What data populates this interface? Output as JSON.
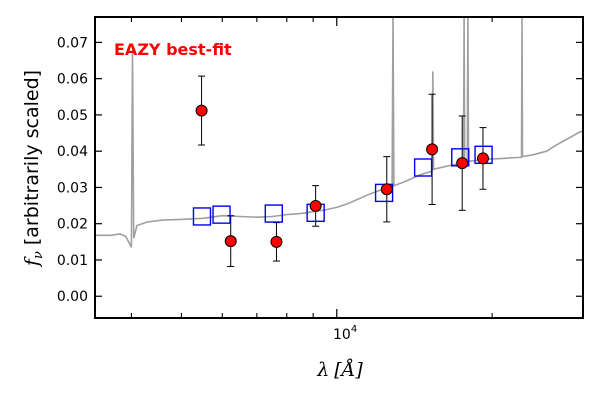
{
  "chart_data": {
    "type": "scatter",
    "title": "",
    "annotation": "EAZY best-fit",
    "annotation_color": "#ff0000",
    "ylabel_math": "f",
    "ylabel_sub": "ν",
    "ylabel_text": "[arbitrarily scaled]",
    "xlabel_math": "λ",
    "xlabel_text": "[Å]",
    "x_scale": "log",
    "xlim": [
      3400,
      30000
    ],
    "ylim": [
      -0.006,
      0.077
    ],
    "y_ticks": [
      0.0,
      0.01,
      0.02,
      0.03,
      0.04,
      0.05,
      0.06,
      0.07
    ],
    "y_tick_labels": [
      "0.00",
      "0.01",
      "0.02",
      "0.03",
      "0.04",
      "0.05",
      "0.06",
      "0.07"
    ],
    "x_major_ticks": [
      10000
    ],
    "x_tick_label_base": "10",
    "x_tick_label_exp": "4",
    "x_minor_ticks": [
      4000,
      5000,
      6000,
      7000,
      8000,
      9000,
      20000,
      30000
    ],
    "grid": false,
    "legend": "none",
    "colors": {
      "observed_face": "#ff0000",
      "observed_edge": "#000000",
      "model_box": "#0000ee",
      "template": "#a0a0a0",
      "errorbar": "#000000"
    },
    "series": [
      {
        "kind": "observed_photometry",
        "marker": "circle",
        "points": [
          {
            "x": 5470,
            "y": 0.0512,
            "err": 0.0095
          },
          {
            "x": 6230,
            "y": 0.0152,
            "err": 0.007
          },
          {
            "x": 7640,
            "y": 0.015,
            "err": 0.0053
          },
          {
            "x": 9100,
            "y": 0.0249,
            "err": 0.0056
          },
          {
            "x": 12500,
            "y": 0.0295,
            "err": 0.009
          },
          {
            "x": 15300,
            "y": 0.0405,
            "err": 0.0152
          },
          {
            "x": 17500,
            "y": 0.0367,
            "err": 0.013
          },
          {
            "x": 19200,
            "y": 0.038,
            "err": 0.0085
          }
        ]
      },
      {
        "kind": "model_photometry",
        "marker": "square",
        "points": [
          {
            "x": 5480,
            "y": 0.022
          },
          {
            "x": 5980,
            "y": 0.0225
          },
          {
            "x": 7550,
            "y": 0.0228
          },
          {
            "x": 9100,
            "y": 0.023
          },
          {
            "x": 12350,
            "y": 0.0285
          },
          {
            "x": 14700,
            "y": 0.0355
          },
          {
            "x": 17350,
            "y": 0.0383
          },
          {
            "x": 19250,
            "y": 0.039
          }
        ]
      },
      {
        "kind": "template_spectrum",
        "marker": "line",
        "points": [
          {
            "x": 3400,
            "y": 0.0168
          },
          {
            "x": 3650,
            "y": 0.0168
          },
          {
            "x": 3800,
            "y": 0.0172
          },
          {
            "x": 3900,
            "y": 0.0165
          },
          {
            "x": 3950,
            "y": 0.015
          },
          {
            "x": 4000,
            "y": 0.0135
          },
          {
            "x": 4020,
            "y": 0.068
          },
          {
            "x": 4040,
            "y": 0.016
          },
          {
            "x": 4100,
            "y": 0.0195
          },
          {
            "x": 4300,
            "y": 0.0205
          },
          {
            "x": 4600,
            "y": 0.021
          },
          {
            "x": 5000,
            "y": 0.0212
          },
          {
            "x": 5500,
            "y": 0.0215
          },
          {
            "x": 6000,
            "y": 0.0222
          },
          {
            "x": 6500,
            "y": 0.022
          },
          {
            "x": 7000,
            "y": 0.0218
          },
          {
            "x": 7500,
            "y": 0.022
          },
          {
            "x": 8000,
            "y": 0.0225
          },
          {
            "x": 8500,
            "y": 0.0228
          },
          {
            "x": 9000,
            "y": 0.0233
          },
          {
            "x": 9500,
            "y": 0.0238
          },
          {
            "x": 10000,
            "y": 0.0245
          },
          {
            "x": 10500,
            "y": 0.0255
          },
          {
            "x": 11000,
            "y": 0.0268
          },
          {
            "x": 11500,
            "y": 0.028
          },
          {
            "x": 12000,
            "y": 0.029
          },
          {
            "x": 12500,
            "y": 0.0298
          },
          {
            "x": 12800,
            "y": 0.03
          },
          {
            "x": 12850,
            "y": 0.077
          },
          {
            "x": 12900,
            "y": 0.0305
          },
          {
            "x": 13500,
            "y": 0.0315
          },
          {
            "x": 14500,
            "y": 0.0335
          },
          {
            "x": 15300,
            "y": 0.0345
          },
          {
            "x": 15350,
            "y": 0.062
          },
          {
            "x": 15400,
            "y": 0.035
          },
          {
            "x": 16500,
            "y": 0.036
          },
          {
            "x": 17600,
            "y": 0.0368
          },
          {
            "x": 17650,
            "y": 0.077
          },
          {
            "x": 17700,
            "y": 0.037
          },
          {
            "x": 17900,
            "y": 0.0372
          },
          {
            "x": 17950,
            "y": 0.077
          },
          {
            "x": 18000,
            "y": 0.0372
          },
          {
            "x": 19500,
            "y": 0.0378
          },
          {
            "x": 21000,
            "y": 0.038
          },
          {
            "x": 22800,
            "y": 0.0383
          },
          {
            "x": 22850,
            "y": 0.077
          },
          {
            "x": 22900,
            "y": 0.0385
          },
          {
            "x": 24000,
            "y": 0.039
          },
          {
            "x": 25500,
            "y": 0.04
          },
          {
            "x": 26500,
            "y": 0.0415
          },
          {
            "x": 27500,
            "y": 0.0428
          },
          {
            "x": 28500,
            "y": 0.044
          },
          {
            "x": 29500,
            "y": 0.0452
          },
          {
            "x": 30000,
            "y": 0.0455
          }
        ]
      }
    ]
  }
}
